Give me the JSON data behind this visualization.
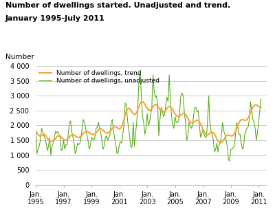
{
  "title_line1": "Number of dwellings started. Unadjusted and trend.",
  "title_line2": "January 1995-July 2011",
  "ylabel": "Number",
  "ylim": [
    0,
    4000
  ],
  "yticks": [
    0,
    500,
    1000,
    1500,
    2000,
    2500,
    3000,
    3500,
    4000
  ],
  "xtick_years": [
    1995,
    1997,
    1999,
    2001,
    2003,
    2005,
    2007,
    2009,
    2011
  ],
  "trend_color": "#f4a630",
  "unadj_color": "#5aaa1e",
  "bg_color": "#ffffff",
  "grid_color": "#cccccc",
  "legend_trend": "Number of dwellings, trend",
  "legend_unadj": "Number of dwellings, unadjusted",
  "unadjusted": [
    1820,
    1050,
    1200,
    1300,
    1500,
    1900,
    1800,
    1650,
    1550,
    1400,
    1150,
    1300,
    1600,
    1000,
    1300,
    1400,
    1600,
    1800,
    1750,
    1800,
    1700,
    1600,
    1150,
    1200,
    1500,
    1200,
    1350,
    1350,
    1700,
    2100,
    2150,
    1800,
    1600,
    1400,
    1050,
    1150,
    1400,
    1350,
    1400,
    1600,
    1900,
    2200,
    2100,
    1900,
    1700,
    1500,
    1200,
    1300,
    1600,
    1550,
    1500,
    1600,
    1900,
    1950,
    2100,
    1900,
    1750,
    1500,
    1200,
    1300,
    1600,
    1650,
    1500,
    1600,
    1700,
    2100,
    2200,
    1800,
    1550,
    1350,
    1050,
    1100,
    1350,
    1450,
    1400,
    1700,
    2000,
    2750,
    2700,
    2200,
    1900,
    1600,
    1250,
    1300,
    2100,
    1300,
    1750,
    2100,
    2700,
    3550,
    3800,
    3000,
    2300,
    2100,
    1700,
    1900,
    2400,
    2000,
    2100,
    2350,
    2600,
    3700,
    3150,
    2950,
    3000,
    2650,
    1650,
    2200,
    2600,
    2500,
    2300,
    2350,
    2700,
    2950,
    2800,
    3700,
    2800,
    2300,
    2000,
    1900,
    2300,
    2100,
    2100,
    2150,
    2500,
    3000,
    3100,
    3000,
    2450,
    2100,
    1500,
    1600,
    2100,
    2000,
    1900,
    2000,
    2350,
    2600,
    2600,
    2450,
    2500,
    2000,
    1600,
    1700,
    1900,
    1700,
    1600,
    1600,
    2100,
    3000,
    2100,
    1800,
    1700,
    1500,
    1100,
    1200,
    1400,
    1100,
    1350,
    1400,
    1700,
    2100,
    1800,
    1700,
    1500,
    1300,
    850,
    800,
    1200,
    1200,
    1250,
    1300,
    1650,
    2100,
    2000,
    1700,
    1700,
    1400,
    1200,
    1250,
    1700,
    1800,
    1900,
    1950,
    2200,
    2800,
    2500,
    2200,
    2100,
    1900,
    1500,
    1750,
    2100,
    2500,
    2900
  ],
  "trend": [
    1800,
    1750,
    1700,
    1650,
    1630,
    1650,
    1680,
    1690,
    1680,
    1630,
    1570,
    1520,
    1480,
    1460,
    1460,
    1480,
    1510,
    1560,
    1600,
    1640,
    1650,
    1640,
    1600,
    1560,
    1530,
    1510,
    1510,
    1530,
    1560,
    1610,
    1650,
    1680,
    1690,
    1680,
    1650,
    1620,
    1600,
    1590,
    1610,
    1640,
    1680,
    1730,
    1770,
    1790,
    1800,
    1790,
    1760,
    1730,
    1700,
    1690,
    1690,
    1710,
    1750,
    1800,
    1850,
    1880,
    1890,
    1870,
    1830,
    1790,
    1760,
    1740,
    1740,
    1760,
    1800,
    1850,
    1900,
    1940,
    1960,
    1950,
    1930,
    1900,
    1880,
    1900,
    1960,
    2060,
    2200,
    2350,
    2470,
    2550,
    2580,
    2560,
    2510,
    2450,
    2390,
    2360,
    2380,
    2440,
    2540,
    2650,
    2740,
    2790,
    2800,
    2770,
    2710,
    2640,
    2580,
    2530,
    2510,
    2520,
    2560,
    2620,
    2670,
    2700,
    2690,
    2650,
    2590,
    2530,
    2480,
    2450,
    2450,
    2470,
    2510,
    2570,
    2620,
    2640,
    2630,
    2590,
    2530,
    2460,
    2390,
    2340,
    2300,
    2290,
    2310,
    2350,
    2390,
    2410,
    2400,
    2370,
    2310,
    2240,
    2170,
    2120,
    2090,
    2080,
    2100,
    2130,
    2170,
    2180,
    2170,
    2120,
    2050,
    1960,
    1870,
    1790,
    1730,
    1690,
    1680,
    1700,
    1730,
    1760,
    1770,
    1750,
    1700,
    1630,
    1550,
    1480,
    1430,
    1410,
    1420,
    1460,
    1520,
    1590,
    1640,
    1670,
    1680,
    1670,
    1650,
    1640,
    1660,
    1710,
    1790,
    1890,
    1990,
    2080,
    2150,
    2190,
    2200,
    2190,
    2170,
    2170,
    2200,
    2250,
    2330,
    2430,
    2530,
    2610,
    2660,
    2690,
    2690,
    2670,
    2640,
    2620,
    2610
  ]
}
